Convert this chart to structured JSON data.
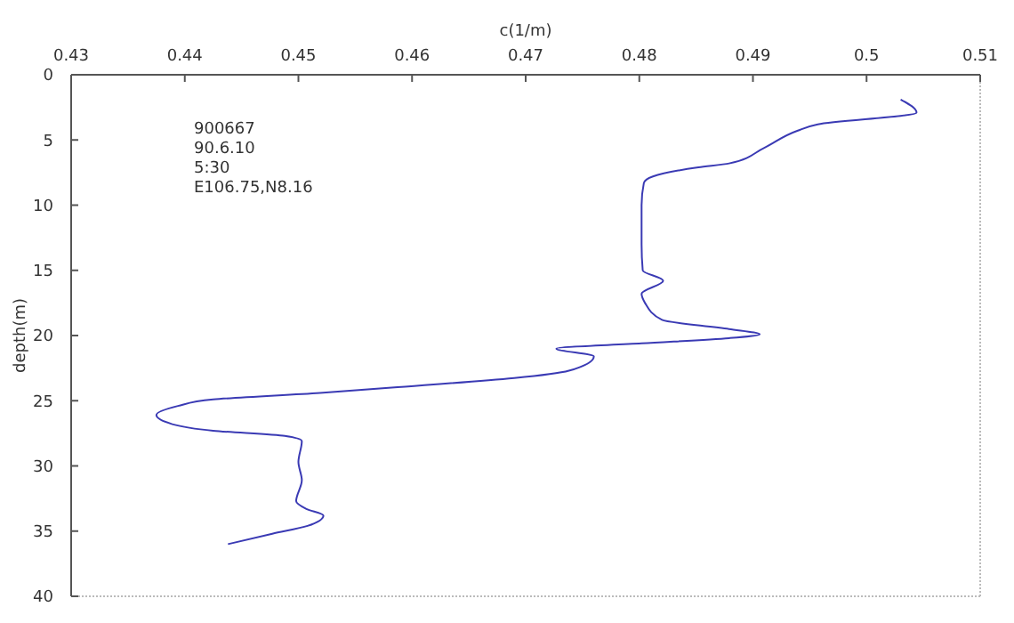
{
  "chart_data": {
    "type": "line",
    "xlabel": "c(1/m)",
    "ylabel": "depth(m)",
    "xlim": [
      0.43,
      0.51
    ],
    "xticks": [
      0.43,
      0.44,
      0.45,
      0.46,
      0.47,
      0.48,
      0.49,
      0.5,
      0.51
    ],
    "ylim": [
      40,
      0
    ],
    "yticks": [
      0,
      5,
      10,
      15,
      20,
      25,
      30,
      35,
      40
    ],
    "annotations": [
      "900667",
      "90.6.10",
      "5:30",
      "E106.75,N8.16"
    ],
    "grid": false,
    "series": [
      {
        "color": "#3a3ab4",
        "x": [
          0.503,
          0.5044,
          0.4957,
          0.4939,
          0.491,
          0.4879,
          0.4852,
          0.4812,
          0.4804,
          0.4802,
          0.4802,
          0.4803,
          0.4821,
          0.4802,
          0.4805,
          0.482,
          0.4879,
          0.4906,
          0.4879,
          0.4802,
          0.4727,
          0.476,
          0.4738,
          0.4582,
          0.4519,
          0.4425,
          0.4394,
          0.4375,
          0.4389,
          0.4425,
          0.4488,
          0.4503,
          0.45,
          0.4503,
          0.4498,
          0.4507,
          0.4522,
          0.4508,
          0.4477,
          0.4438
        ],
        "values": [
          1.9,
          2.9,
          3.8,
          4.3,
          5.6,
          6.8,
          7.1,
          7.8,
          8.3,
          10,
          13,
          15,
          15.8,
          16.8,
          17.5,
          18.8,
          19.5,
          19.9,
          20.2,
          20.6,
          21.0,
          21.6,
          22.7,
          24.0,
          24.4,
          24.9,
          25.4,
          26.1,
          26.8,
          27.3,
          27.7,
          28.1,
          29.7,
          31.1,
          32.7,
          33.3,
          33.8,
          34.6,
          35.2,
          36.0
        ]
      }
    ]
  }
}
